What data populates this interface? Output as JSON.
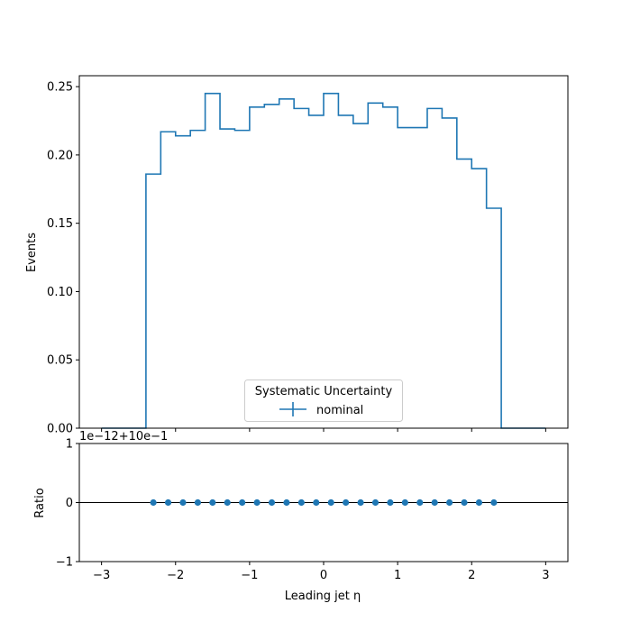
{
  "chart_data": [
    {
      "type": "line",
      "drawstyle": "steps",
      "ylabel": "Events",
      "xlim": [
        -3.3,
        3.3
      ],
      "ylim": [
        0,
        0.258
      ],
      "yticks": [
        0.0,
        0.05,
        0.1,
        0.15,
        0.2,
        0.25
      ],
      "ytick_labels": [
        "0.00",
        "0.05",
        "0.10",
        "0.15",
        "0.20",
        "0.25"
      ],
      "xticks": [
        -3,
        -2,
        -1,
        0,
        1,
        2,
        3
      ],
      "legend": {
        "title": "Systematic Uncertainty",
        "entries": [
          "nominal"
        ],
        "placement": "lower-center"
      },
      "series": [
        {
          "name": "nominal",
          "color": "#1f77b4",
          "bin_edges": [
            -3.0,
            -2.8,
            -2.6,
            -2.4,
            -2.2,
            -2.0,
            -1.8,
            -1.6,
            -1.4,
            -1.2,
            -1.0,
            -0.8,
            -0.6,
            -0.4,
            -0.2,
            0.0,
            0.2,
            0.4,
            0.6,
            0.8,
            1.0,
            1.2,
            1.4,
            1.6,
            1.8,
            2.0,
            2.2,
            2.4,
            2.6,
            2.8,
            3.0
          ],
          "values": [
            0.0,
            0.0,
            0.0,
            0.186,
            0.217,
            0.214,
            0.218,
            0.245,
            0.219,
            0.218,
            0.235,
            0.237,
            0.241,
            0.234,
            0.229,
            0.245,
            0.229,
            0.223,
            0.238,
            0.235,
            0.22,
            0.22,
            0.234,
            0.227,
            0.197,
            0.19,
            0.161,
            0.0,
            0.0,
            0.0
          ]
        }
      ]
    },
    {
      "type": "scatter",
      "ylabel": "Ratio",
      "xlabel": "Leading jet  η",
      "offset_text": "1e−12+10e−1",
      "xlim": [
        -3.3,
        3.3
      ],
      "ylim": [
        -1,
        1
      ],
      "yticks": [
        -1,
        0,
        1
      ],
      "ytick_labels": [
        "−1",
        "0",
        "1"
      ],
      "xticks": [
        -3,
        -2,
        -1,
        0,
        1,
        2,
        3
      ],
      "xtick_labels": [
        "−3",
        "−2",
        "−1",
        "0",
        "1",
        "2",
        "3"
      ],
      "reference_line": 0,
      "series": [
        {
          "name": "nominal",
          "color": "#1f77b4",
          "x": [
            -2.3,
            -2.1,
            -1.9,
            -1.7,
            -1.5,
            -1.3,
            -1.1,
            -0.9,
            -0.7,
            -0.5,
            -0.3,
            -0.1,
            0.1,
            0.3,
            0.5,
            0.7,
            0.9,
            1.1,
            1.3,
            1.5,
            1.7,
            1.9,
            2.1,
            2.3
          ],
          "y": [
            0,
            0,
            0,
            0,
            0,
            0,
            0,
            0,
            0,
            0,
            0,
            0,
            0,
            0,
            0,
            0,
            0,
            0,
            0,
            0,
            0,
            0,
            0,
            0
          ]
        }
      ]
    }
  ]
}
